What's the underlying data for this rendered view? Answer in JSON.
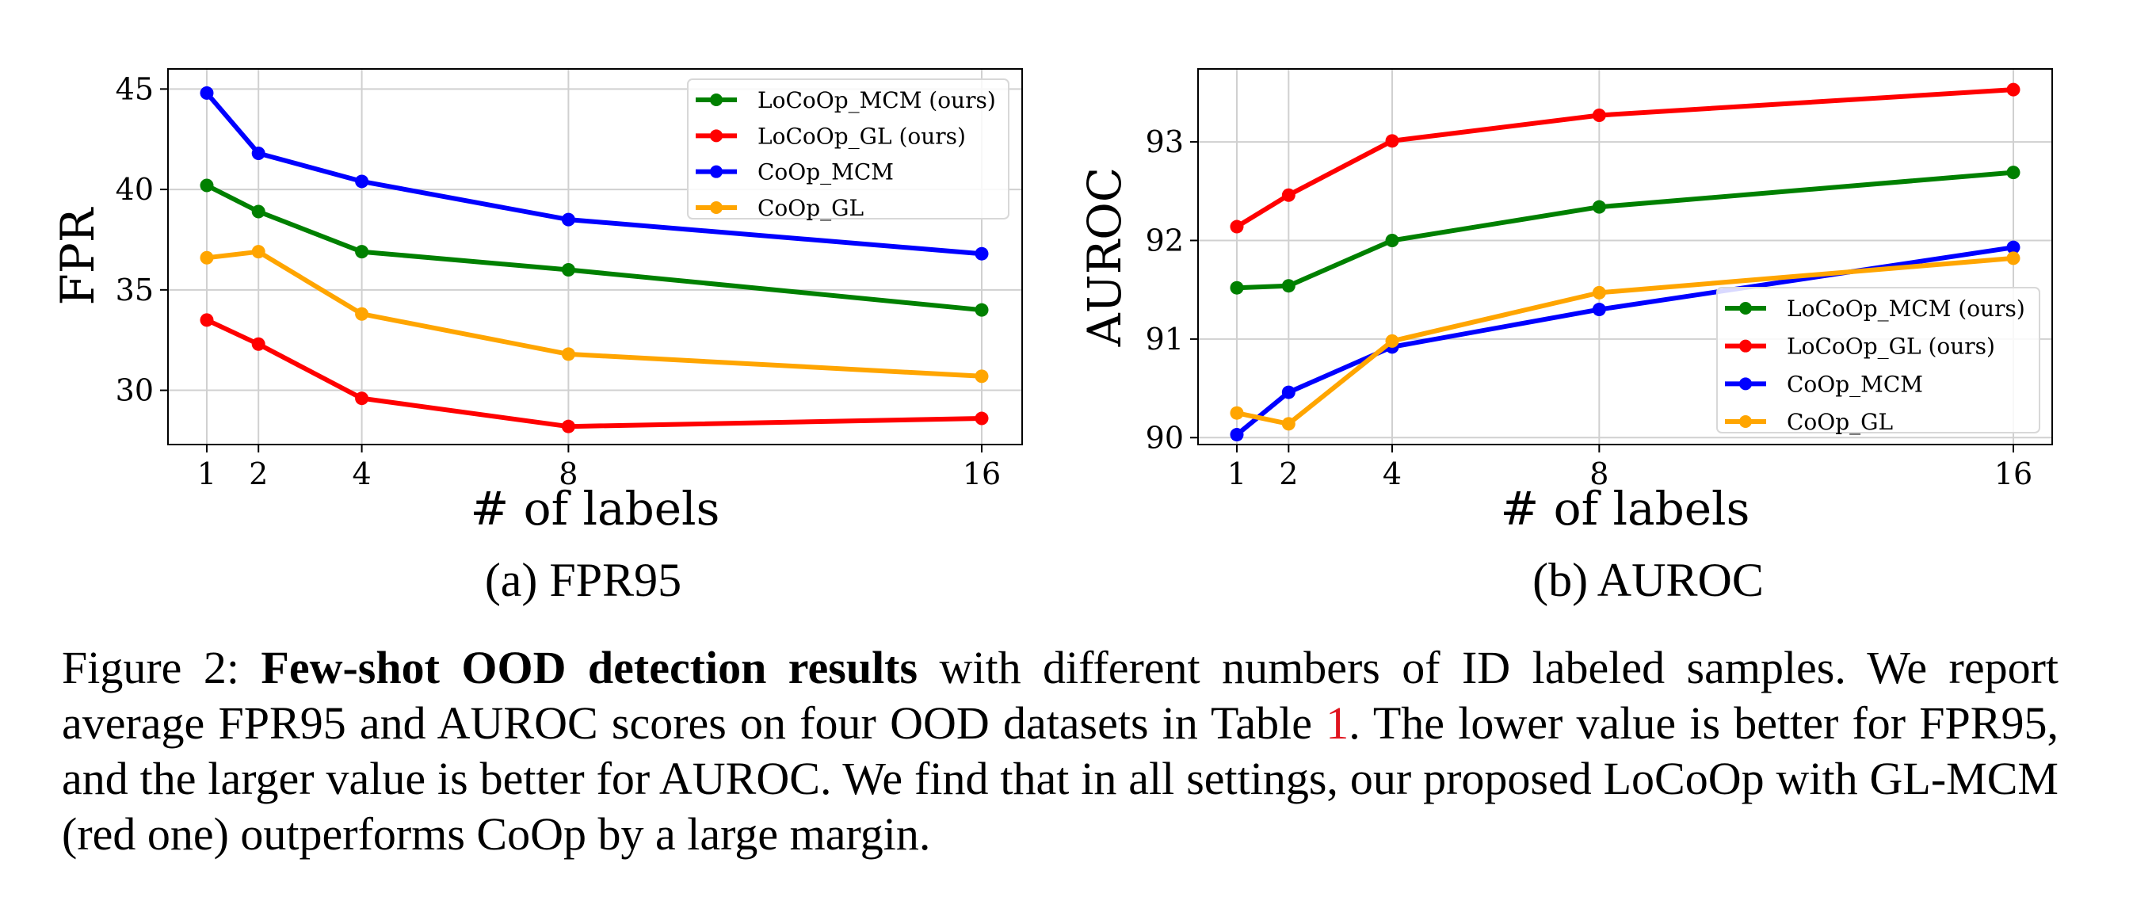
{
  "chart_data": [
    {
      "type": "line",
      "x": [
        1,
        2,
        4,
        8,
        16
      ],
      "xticks": [
        "1",
        "2",
        "4",
        "8",
        "16"
      ],
      "xlabel": "# of labels",
      "ylabel": "FPR",
      "yticks": [
        "30",
        "35",
        "40",
        "45"
      ],
      "ylim": [
        27.3,
        46.0
      ],
      "grid": true,
      "legend_position": "top-right",
      "subtitle": "(a) FPR95",
      "series": [
        {
          "name": "LoCoOp_MCM (ours)",
          "color": "#008000",
          "values": [
            40.2,
            38.9,
            36.9,
            36.0,
            34.0
          ]
        },
        {
          "name": "LoCoOp_GL (ours)",
          "color": "#ff0000",
          "values": [
            33.5,
            32.3,
            29.6,
            28.2,
            28.6
          ]
        },
        {
          "name": "CoOp_MCM",
          "color": "#0000ff",
          "values": [
            44.8,
            41.8,
            40.4,
            38.5,
            36.8
          ]
        },
        {
          "name": "CoOp_GL",
          "color": "#ffa500",
          "values": [
            36.6,
            36.9,
            33.8,
            31.8,
            30.7
          ]
        }
      ]
    },
    {
      "type": "line",
      "x": [
        1,
        2,
        4,
        8,
        16
      ],
      "xticks": [
        "1",
        "2",
        "4",
        "8",
        "16"
      ],
      "xlabel": "# of labels",
      "ylabel": "AUROC",
      "yticks": [
        "90",
        "91",
        "92",
        "93"
      ],
      "ylim": [
        89.93,
        93.74
      ],
      "grid": true,
      "legend_position": "lower-right",
      "subtitle": "(b) AUROC",
      "series": [
        {
          "name": "LoCoOp_MCM (ours)",
          "color": "#008000",
          "values": [
            91.52,
            91.54,
            92.0,
            92.34,
            92.69
          ]
        },
        {
          "name": "LoCoOp_GL (ours)",
          "color": "#ff0000",
          "values": [
            92.14,
            92.46,
            93.01,
            93.27,
            93.53
          ]
        },
        {
          "name": "CoOp_MCM",
          "color": "#0000ff",
          "values": [
            90.03,
            90.46,
            90.92,
            91.3,
            91.93
          ]
        },
        {
          "name": "CoOp_GL",
          "color": "#ffa500",
          "values": [
            90.25,
            90.14,
            90.98,
            91.47,
            91.82
          ]
        }
      ]
    }
  ],
  "caption": {
    "prefix": "Figure 2: ",
    "bold": "Few-shot OOD detection results",
    "text1": " with different numbers of ID labeled samples. We report average FPR95 and AUROC scores on four OOD datasets in Table ",
    "ref": "1",
    "text2": ". The lower value is better for FPR95, and the larger value is better for AUROC. We find that in all settings, our proposed LoCoOp with GL-MCM (red one) outperforms CoOp by a large margin."
  }
}
